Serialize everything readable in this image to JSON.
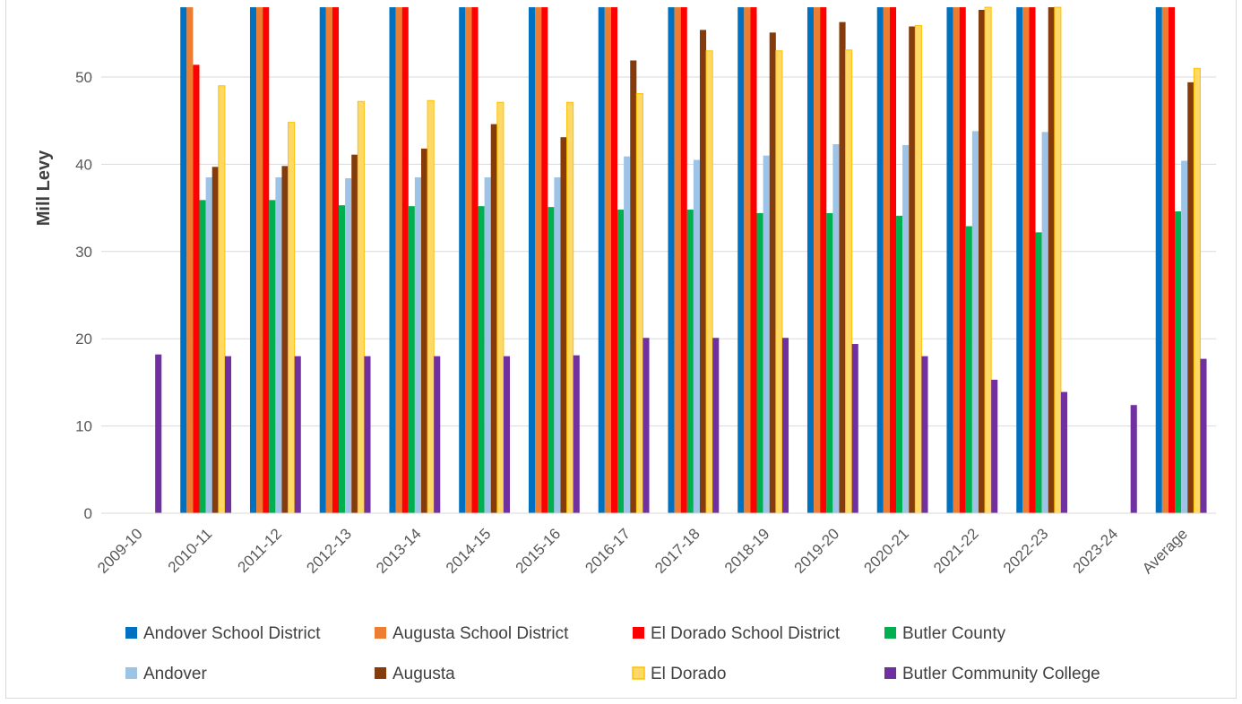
{
  "chart_data": {
    "type": "bar",
    "title": "",
    "xlabel": "",
    "ylabel": "Mill Levy",
    "ylim": [
      0,
      58
    ],
    "yticks": [
      0,
      10,
      20,
      30,
      40,
      50
    ],
    "grid": true,
    "legend_position": "bottom",
    "categories": [
      "2009-10",
      "2010-11",
      "2011-12",
      "2012-13",
      "2013-14",
      "2014-15",
      "2015-16",
      "2016-17",
      "2017-18",
      "2018-19",
      "2019-20",
      "2020-21",
      "2021-22",
      "2022-23",
      "2023-24",
      "Average"
    ],
    "series": [
      {
        "name": "Andover School District",
        "color": "#0070C0",
        "values": [
          null,
          58,
          58,
          58,
          58,
          58,
          58,
          58,
          58,
          58,
          58,
          58,
          58,
          58,
          null,
          58
        ]
      },
      {
        "name": "Augusta School District",
        "color": "#ED7D31",
        "values": [
          null,
          58,
          58,
          58,
          58,
          58,
          58,
          58,
          58,
          58,
          58,
          58,
          58,
          58,
          null,
          58
        ]
      },
      {
        "name": "El Dorado School District",
        "color": "#FF0000",
        "values": [
          null,
          51.4,
          58,
          58,
          58,
          58,
          58,
          58,
          58,
          58,
          58,
          58,
          58,
          58,
          null,
          58
        ]
      },
      {
        "name": "Butler County",
        "color": "#00B050",
        "values": [
          null,
          35.9,
          35.9,
          35.3,
          35.2,
          35.2,
          35.1,
          34.8,
          34.8,
          34.4,
          34.4,
          34.1,
          32.9,
          32.2,
          null,
          34.6
        ]
      },
      {
        "name": "Andover",
        "color": "#9DC3E6",
        "values": [
          null,
          38.5,
          38.5,
          38.4,
          38.5,
          38.5,
          38.5,
          40.9,
          40.5,
          41.0,
          42.3,
          42.2,
          43.8,
          43.7,
          null,
          40.4
        ]
      },
      {
        "name": "Augusta",
        "color": "#843C0C",
        "values": [
          null,
          39.7,
          39.8,
          41.1,
          41.8,
          44.6,
          43.1,
          51.9,
          55.4,
          55.1,
          56.3,
          55.8,
          57.7,
          58,
          null,
          49.4
        ]
      },
      {
        "name": "El Dorado",
        "color": "#FFD966",
        "values": [
          null,
          49.0,
          44.8,
          47.2,
          47.3,
          47.1,
          47.1,
          48.1,
          53.0,
          53.0,
          53.1,
          55.9,
          58.3,
          58,
          null,
          51.0
        ]
      },
      {
        "name": "Butler Community College",
        "color": "#7030A0",
        "values": [
          18.2,
          18.0,
          18.0,
          18.0,
          18.0,
          18.0,
          18.1,
          20.1,
          20.1,
          20.1,
          19.4,
          18.0,
          15.3,
          13.9,
          12.4,
          17.7
        ]
      }
    ]
  }
}
